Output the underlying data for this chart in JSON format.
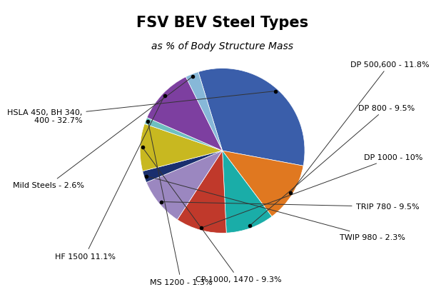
{
  "title": "FSV BEV Steel Types",
  "subtitle": "as % of Body Structure Mass",
  "slices": [
    {
      "label": "HSLA 450, BH 340,\n400 - 32.7%",
      "value": 32.7,
      "color": "#3a5eaa"
    },
    {
      "label": "DP 500,600 - 11.8%",
      "value": 11.8,
      "color": "#e07820"
    },
    {
      "label": "DP 800 - 9.5%",
      "value": 9.5,
      "color": "#1aada8"
    },
    {
      "label": "DP 1000 - 10%",
      "value": 10.0,
      "color": "#c0392b"
    },
    {
      "label": "TRIP 780 - 9.5%",
      "value": 9.5,
      "color": "#9b87c0"
    },
    {
      "label": "TWIP 980 - 2.3%",
      "value": 2.3,
      "color": "#1a2f6e"
    },
    {
      "label": "CP 1000, 1470 - 9.3%",
      "value": 9.3,
      "color": "#c8b820"
    },
    {
      "label": "MS 1200 - 1.3%",
      "value": 1.3,
      "color": "#6ec0c0"
    },
    {
      "label": "HF 1500 11.1%",
      "value": 11.1,
      "color": "#7d3fa0"
    },
    {
      "label": "Mild Steels - 2.6%",
      "value": 2.6,
      "color": "#87b8d8"
    }
  ],
  "startangle": 107,
  "bg_color": "#ffffff",
  "title_fontsize": 15,
  "subtitle_fontsize": 10,
  "label_fontsize": 8
}
